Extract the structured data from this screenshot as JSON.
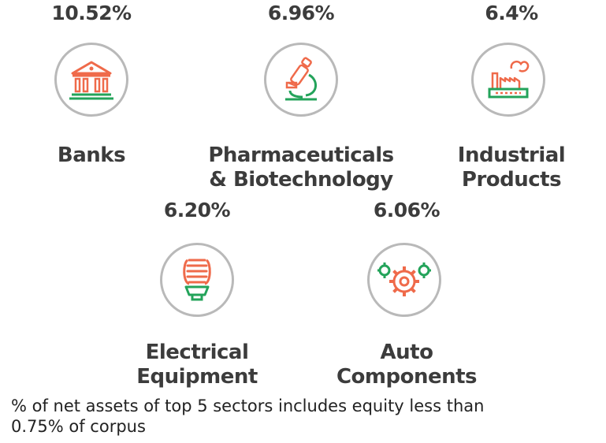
{
  "sectors": [
    {
      "percent": "10.52%",
      "name_line1": "Banks",
      "name_line2": "",
      "icon": "bank-icon"
    },
    {
      "percent": "6.96%",
      "name_line1": "Pharmaceuticals",
      "name_line2": "& Biotechnology",
      "icon": "microscope-icon"
    },
    {
      "percent": "6.4%",
      "name_line1": "Industrial",
      "name_line2": "Products",
      "icon": "factory-icon"
    },
    {
      "percent": "6.20%",
      "name_line1": "Electrical",
      "name_line2": "Equipment",
      "icon": "light-bulb-icon"
    },
    {
      "percent": "6.06%",
      "name_line1": "Auto",
      "name_line2": "Components",
      "icon": "gears-icon"
    }
  ],
  "footnote": {
    "line1": "% of net assets of top 5 sectors includes equity less than",
    "line2": "0.75% of corpus"
  },
  "colors": {
    "accent_orange": "#ef6a4a",
    "accent_green": "#23a35a",
    "ring_grey": "#b9b9b9",
    "text_dark": "#3c3c3c"
  }
}
